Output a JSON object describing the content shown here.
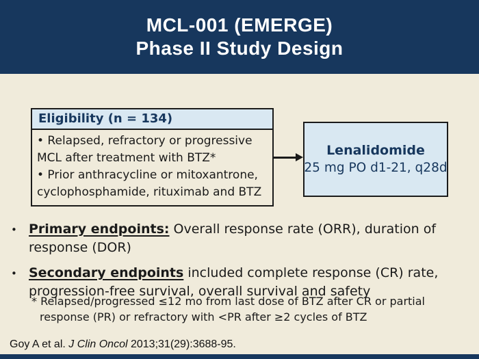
{
  "slide": {
    "title_line1": "MCL-001 (EMERGE)",
    "title_line2": "Phase II Study Design"
  },
  "colors": {
    "navy": "#17375D",
    "cream_background": "#F0EBDB",
    "light_blue_fill": "#D9E8F2",
    "border_dark": "#1A1A1A",
    "title_text": "#FFFFFF"
  },
  "eligibility": {
    "header": "Eligibility (n = 134)",
    "criteria_lines": [
      "• Relapsed, refractory or progressive",
      "MCL after treatment with BTZ*",
      "• Prior anthracycline or mitoxantrone,",
      "cyclophosphamide, rituximab and BTZ"
    ]
  },
  "treatment": {
    "drug_name": "Lenalidomide",
    "dosing": "25 mg PO d1-21, q28d"
  },
  "endpoints": [
    {
      "bullet": "•",
      "label": "Primary endpoints:",
      "rest_line1": " Overall response rate (ORR), duration of",
      "line2": "response (DOR)"
    },
    {
      "bullet": "•",
      "label": "Secondary endpoints",
      "rest_line1": " included complete response (CR) rate,",
      "line2": "progression-free survival, overall survival and safety"
    }
  ],
  "footnote": {
    "line1": "* Relapsed/progressed ≤12 mo from last dose of BTZ after CR or partial",
    "line2": "response (PR) or refractory with <PR after ≥2 cycles of BTZ"
  },
  "citation": {
    "authors": "Goy A et al. ",
    "journal_italic": "J Clin Oncol",
    "reference": " 2013;31(29):3688-95."
  }
}
